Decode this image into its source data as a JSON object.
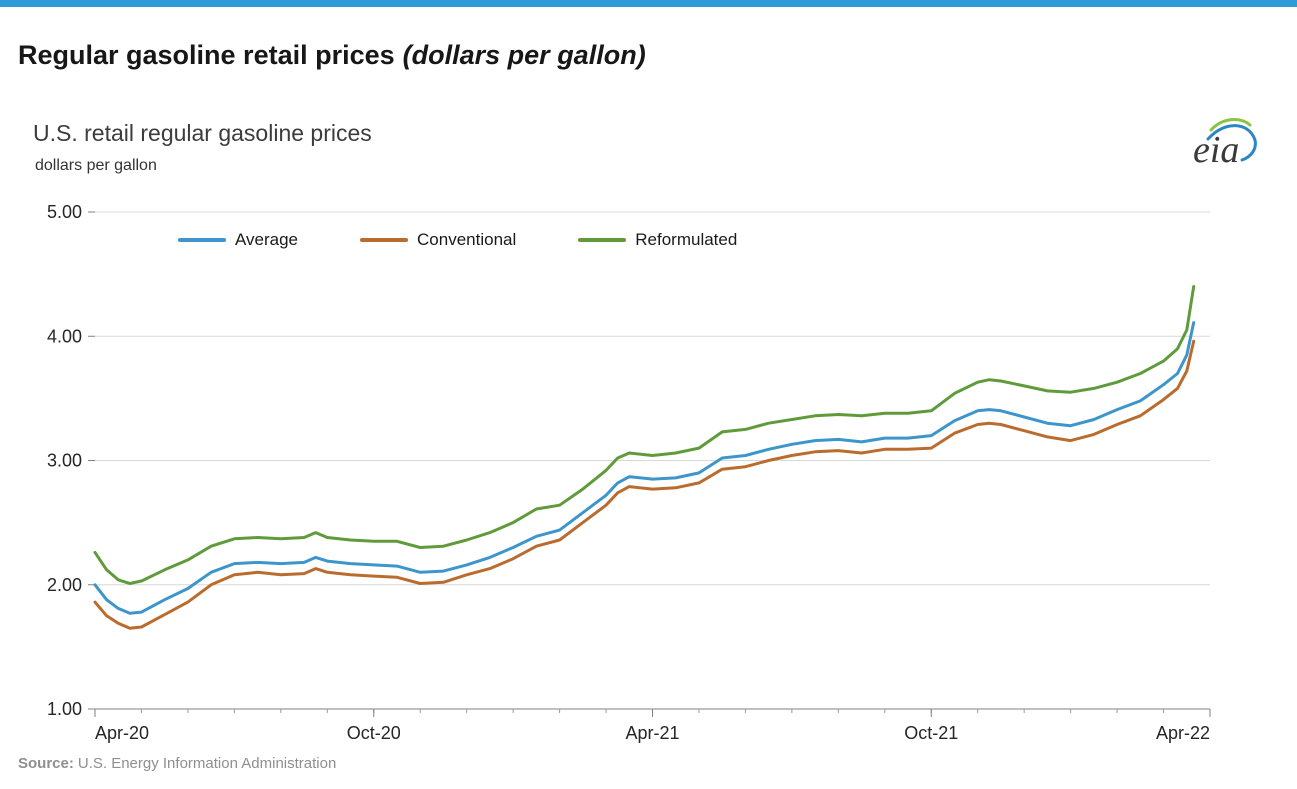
{
  "page": {
    "title_main": "Regular gasoline retail prices",
    "title_paren": "(dollars per gallon)",
    "accent_color": "#2d9bd6"
  },
  "chart": {
    "title": "U.S. retail regular gasoline prices",
    "subtitle": "dollars per gallon",
    "logo_text": "eia",
    "source_label": "Source:",
    "source_text": "U.S. Energy Information Administration"
  },
  "chart_data": {
    "type": "line",
    "title": "U.S. retail regular gasoline prices",
    "ylabel": "dollars per gallon",
    "ylim": [
      1.0,
      5.0
    ],
    "yticks": [
      1,
      2,
      3,
      4,
      5
    ],
    "ytick_labels": [
      "1.00",
      "2.00",
      "3.00",
      "4.00",
      "5.00"
    ],
    "x_unit": "months since Apr-2020",
    "xlim": [
      0,
      24
    ],
    "xticks": [
      0,
      6,
      12,
      18,
      24
    ],
    "xtick_labels": [
      "Apr-20",
      "Oct-20",
      "Apr-21",
      "Oct-21",
      "Apr-22"
    ],
    "grid": "horizontal",
    "legend_position": "top-left-inside",
    "x": [
      0,
      0.25,
      0.5,
      0.75,
      1,
      1.5,
      2,
      2.5,
      3,
      3.5,
      4,
      4.5,
      4.75,
      5,
      5.5,
      6,
      6.5,
      7,
      7.5,
      8,
      8.5,
      9,
      9.5,
      10,
      10.5,
      11,
      11.25,
      11.5,
      12,
      12.5,
      13,
      13.5,
      14,
      14.5,
      15,
      15.5,
      16,
      16.5,
      17,
      17.5,
      18,
      18.5,
      19,
      19.25,
      19.5,
      20,
      20.5,
      21,
      21.5,
      22,
      22.5,
      23,
      23.3,
      23.5,
      23.65
    ],
    "series": [
      {
        "name": "Average",
        "color": "#3d96cb",
        "values": [
          2.0,
          1.88,
          1.81,
          1.77,
          1.78,
          1.88,
          1.97,
          2.1,
          2.17,
          2.18,
          2.17,
          2.18,
          2.22,
          2.19,
          2.17,
          2.16,
          2.15,
          2.1,
          2.11,
          2.16,
          2.22,
          2.3,
          2.39,
          2.44,
          2.58,
          2.72,
          2.82,
          2.87,
          2.85,
          2.86,
          2.9,
          3.02,
          3.04,
          3.09,
          3.13,
          3.16,
          3.17,
          3.15,
          3.18,
          3.18,
          3.2,
          3.32,
          3.4,
          3.41,
          3.4,
          3.35,
          3.3,
          3.28,
          3.33,
          3.41,
          3.48,
          3.61,
          3.7,
          3.85,
          4.11
        ]
      },
      {
        "name": "Conventional",
        "color": "#ba6c2f",
        "values": [
          1.86,
          1.75,
          1.69,
          1.65,
          1.66,
          1.76,
          1.86,
          2.0,
          2.08,
          2.1,
          2.08,
          2.09,
          2.13,
          2.1,
          2.08,
          2.07,
          2.06,
          2.01,
          2.02,
          2.08,
          2.13,
          2.21,
          2.31,
          2.36,
          2.5,
          2.64,
          2.74,
          2.79,
          2.77,
          2.78,
          2.82,
          2.93,
          2.95,
          3.0,
          3.04,
          3.07,
          3.08,
          3.06,
          3.09,
          3.09,
          3.1,
          3.22,
          3.29,
          3.3,
          3.29,
          3.24,
          3.19,
          3.16,
          3.21,
          3.29,
          3.36,
          3.49,
          3.58,
          3.72,
          3.96
        ]
      },
      {
        "name": "Reformulated",
        "color": "#609b3b",
        "values": [
          2.26,
          2.12,
          2.04,
          2.01,
          2.03,
          2.12,
          2.2,
          2.31,
          2.37,
          2.38,
          2.37,
          2.38,
          2.42,
          2.38,
          2.36,
          2.35,
          2.35,
          2.3,
          2.31,
          2.36,
          2.42,
          2.5,
          2.61,
          2.64,
          2.77,
          2.92,
          3.02,
          3.06,
          3.04,
          3.06,
          3.1,
          3.23,
          3.25,
          3.3,
          3.33,
          3.36,
          3.37,
          3.36,
          3.38,
          3.38,
          3.4,
          3.54,
          3.63,
          3.65,
          3.64,
          3.6,
          3.56,
          3.55,
          3.58,
          3.63,
          3.7,
          3.8,
          3.9,
          4.05,
          4.4
        ]
      }
    ]
  }
}
